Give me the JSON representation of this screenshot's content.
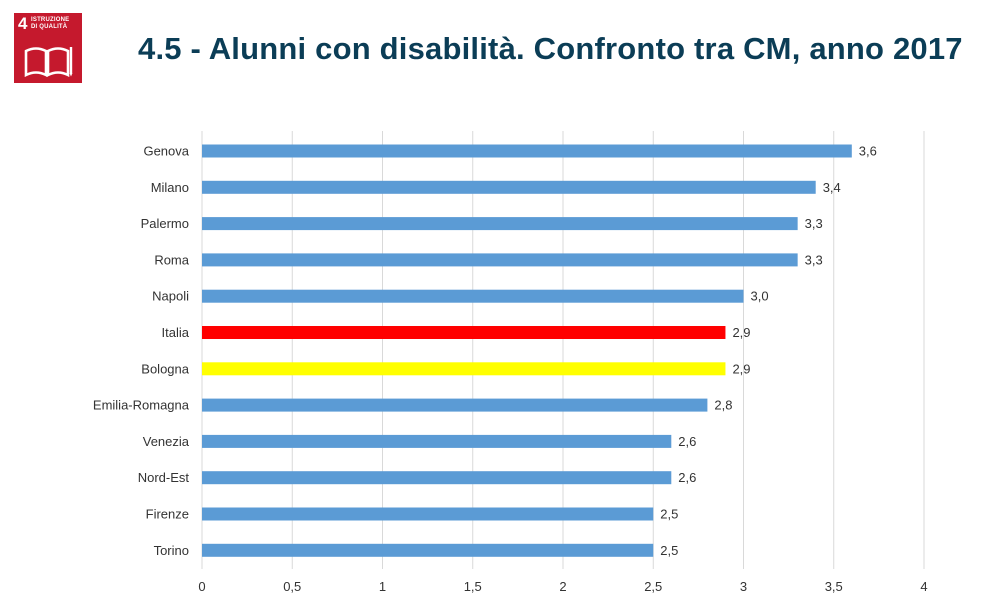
{
  "header": {
    "title": "4.5 - Alunni con disabilità. Confronto tra CM, anno 2017",
    "badge_number": "4",
    "badge_label_line1": "ISTRUZIONE",
    "badge_label_line2": "DI QUALITÀ",
    "badge_icon": "book-pencil-icon",
    "badge_color": "#c5192d"
  },
  "chart_data": {
    "type": "bar",
    "orientation": "horizontal",
    "categories": [
      "Genova",
      "Milano",
      "Palermo",
      "Roma",
      "Napoli",
      "Italia",
      "Bologna",
      "Emilia-Romagna",
      "Venezia",
      "Nord-Est",
      "Firenze",
      "Torino"
    ],
    "values": [
      3.6,
      3.4,
      3.3,
      3.3,
      3.0,
      2.9,
      2.9,
      2.8,
      2.6,
      2.6,
      2.5,
      2.5
    ],
    "value_labels": [
      "3,6",
      "3,4",
      "3,3",
      "3,3",
      "3,0",
      "2,9",
      "2,9",
      "2,8",
      "2,6",
      "2,6",
      "2,5",
      "2,5"
    ],
    "colors": [
      "#5b9bd5",
      "#5b9bd5",
      "#5b9bd5",
      "#5b9bd5",
      "#5b9bd5",
      "#ff0000",
      "#ffff00",
      "#5b9bd5",
      "#5b9bd5",
      "#5b9bd5",
      "#5b9bd5",
      "#5b9bd5"
    ],
    "xlim": [
      0,
      4
    ],
    "x_ticks": [
      0,
      0.5,
      1,
      1.5,
      2,
      2.5,
      3,
      3.5,
      4
    ],
    "x_tick_labels": [
      "0",
      "0,5",
      "1",
      "1,5",
      "2",
      "2,5",
      "3",
      "3,5",
      "4"
    ],
    "grid": true,
    "legend": false
  }
}
